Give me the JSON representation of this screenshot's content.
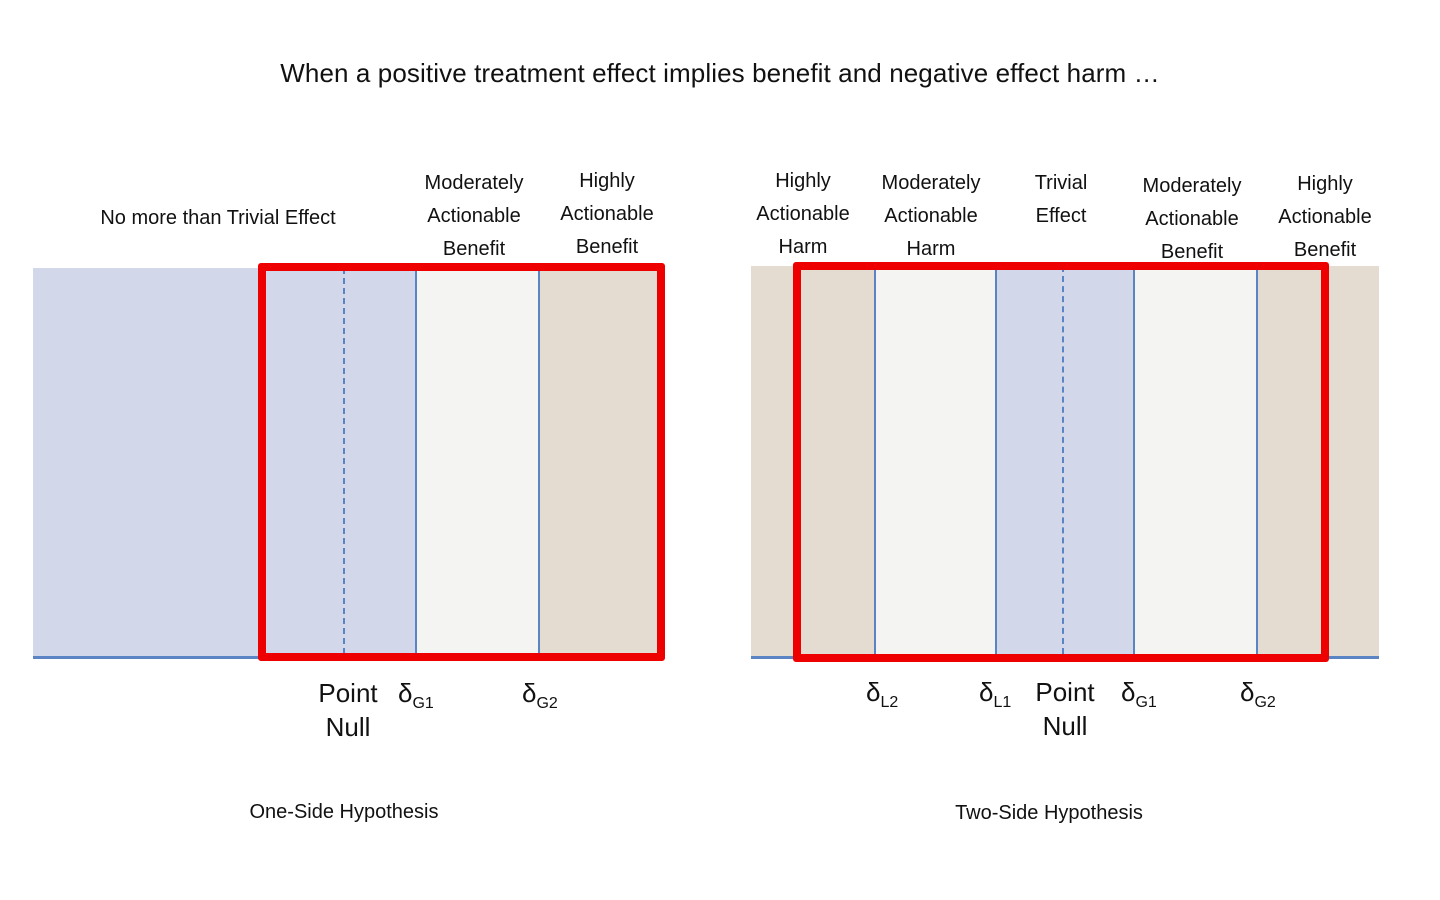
{
  "title": "When a positive treatment effect implies benefit and negative effect harm …",
  "colors": {
    "trivial_zone": "#d2d8ea",
    "moderate_zone": "#f4f4f3",
    "high_zone": "#e5dcd1",
    "boundary_line": "#5b84c4",
    "highlight_frame": "#ee0000"
  },
  "one_side": {
    "caption": "One-Side Hypothesis",
    "zones": {
      "trivial": "No more than Trivial Effect",
      "moderate": [
        "Moderately",
        "Actionable",
        "Benefit"
      ],
      "high": [
        "Highly",
        "Actionable",
        "Benefit"
      ]
    },
    "markers": {
      "null": [
        "Point",
        "Null"
      ],
      "g1": {
        "symbol": "δ",
        "sub": "G1"
      },
      "g2": {
        "symbol": "δ",
        "sub": "G2"
      }
    }
  },
  "two_side": {
    "caption": "Two-Side Hypothesis",
    "zones": {
      "high_harm": [
        "Highly",
        "Actionable",
        "Harm"
      ],
      "moderate_harm": [
        "Moderately",
        "Actionable",
        "Harm"
      ],
      "trivial": [
        "Trivial",
        "Effect"
      ],
      "moderate_benefit": [
        "Moderately",
        "Actionable",
        "Benefit"
      ],
      "high_benefit": [
        "Highly",
        "Actionable",
        "Benefit"
      ]
    },
    "markers": {
      "l2": {
        "symbol": "δ",
        "sub": "L2"
      },
      "l1": {
        "symbol": "δ",
        "sub": "L1"
      },
      "null": [
        "Point",
        "Null"
      ],
      "g1": {
        "symbol": "δ",
        "sub": "G1"
      },
      "g2": {
        "symbol": "δ",
        "sub": "G2"
      }
    }
  }
}
